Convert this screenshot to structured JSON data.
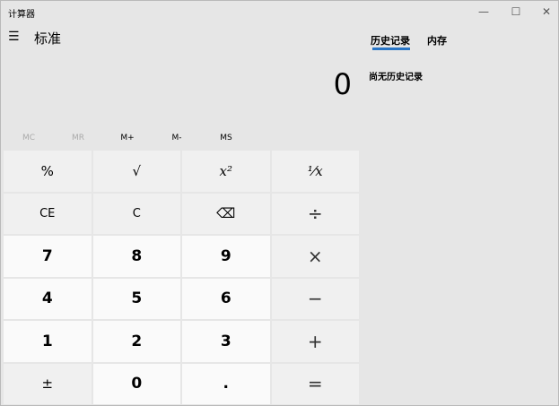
{
  "window": {
    "title": "计算器",
    "minimize": "—",
    "maximize": "☐",
    "close": "✕"
  },
  "header": {
    "menu_icon": "☰",
    "mode": "标准"
  },
  "panel": {
    "tabs": [
      "历史记录",
      "内存"
    ],
    "empty_text": "尚无历史记录"
  },
  "display": {
    "value": "0"
  },
  "memory": [
    "MC",
    "MR",
    "M+",
    "M-",
    "MS"
  ],
  "keys": [
    [
      "%",
      "√",
      "x²",
      "¹⁄x"
    ],
    [
      "CE",
      "C",
      "⌫",
      "÷"
    ],
    [
      "7",
      "8",
      "9",
      "×"
    ],
    [
      "4",
      "5",
      "6",
      "−"
    ],
    [
      "1",
      "2",
      "3",
      "+"
    ],
    [
      "±",
      "0",
      ".",
      "="
    ]
  ]
}
